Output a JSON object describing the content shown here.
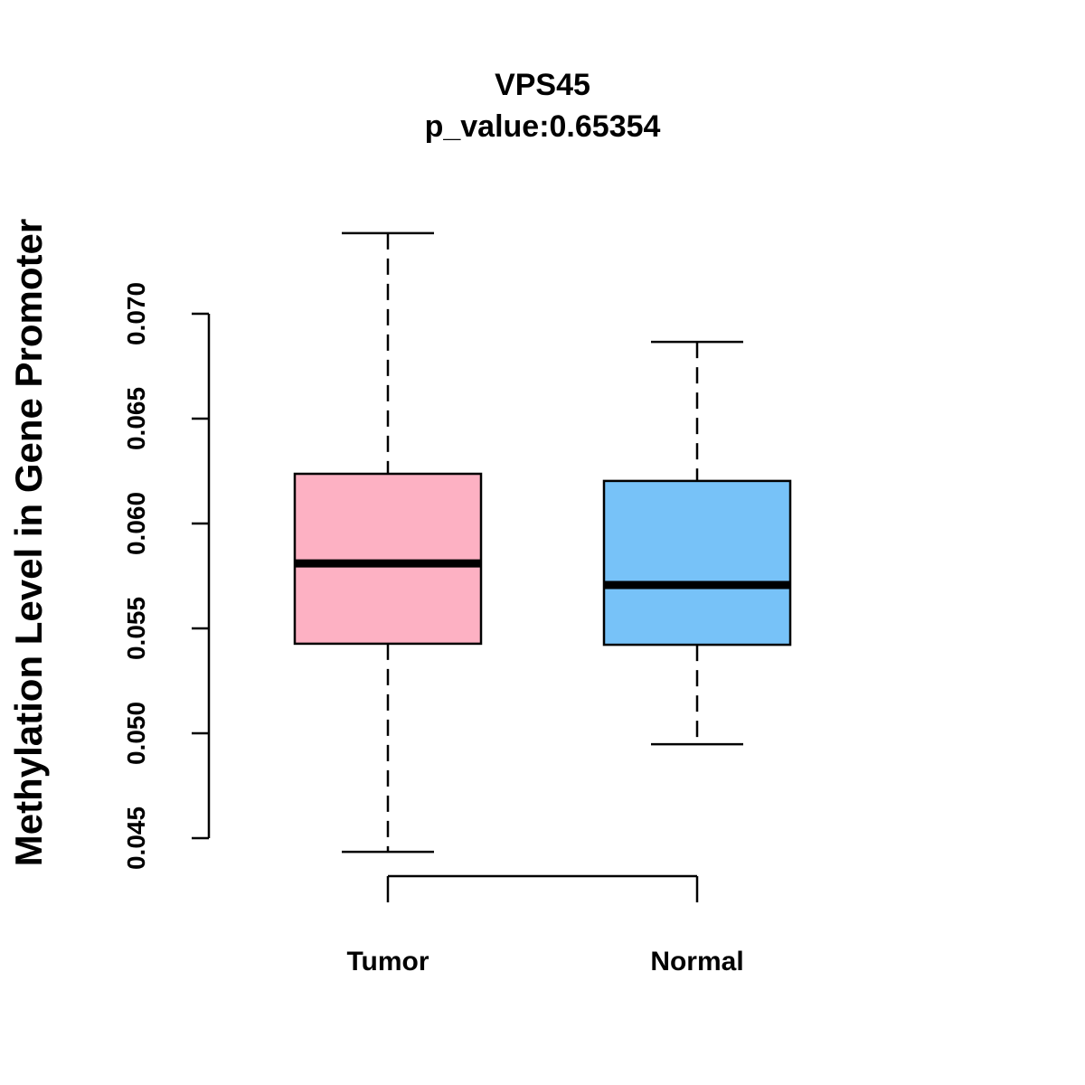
{
  "chart_data": {
    "type": "box",
    "title": "VPS45",
    "subtitle": "p_value:0.65354",
    "xlabel": "",
    "ylabel": "Methylation Level in Gene Promoter",
    "ylim": [
      0.045,
      0.07
    ],
    "yticks": [
      "0.045",
      "0.050",
      "0.055",
      "0.060",
      "0.065",
      "0.070"
    ],
    "categories": [
      "Tumor",
      "Normal"
    ],
    "series": [
      {
        "name": "Tumor",
        "color": "#FDB1C3",
        "whisker_low": 0.04435,
        "q1": 0.05427,
        "median": 0.0581,
        "q3": 0.06237,
        "whisker_high": 0.07384
      },
      {
        "name": "Normal",
        "color": "#77C2F8",
        "whisker_low": 0.04948,
        "q1": 0.05422,
        "median": 0.05707,
        "q3": 0.06203,
        "whisker_high": 0.06866
      }
    ],
    "grid": false,
    "legend": "none"
  }
}
